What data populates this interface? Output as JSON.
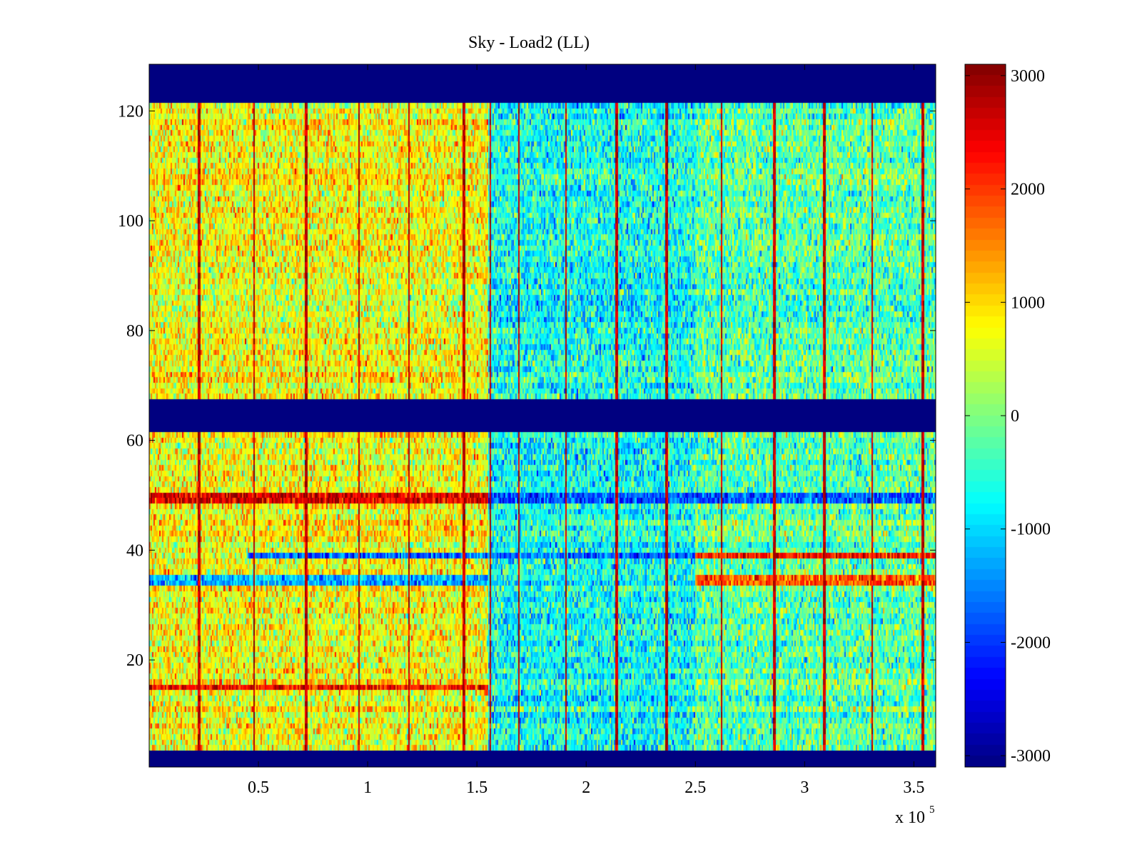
{
  "chart_data": {
    "type": "heatmap",
    "title": "Sky - Load2 (LL)",
    "xlabel": "",
    "ylabel": "",
    "x_multiplier_label": "x 10",
    "x_multiplier_exponent": "5",
    "xlim": [
      0,
      3.6
    ],
    "ylim": [
      0.5,
      128.5
    ],
    "xticks": [
      {
        "value": 0.5,
        "label": "0.5"
      },
      {
        "value": 1,
        "label": "1"
      },
      {
        "value": 1.5,
        "label": "1.5"
      },
      {
        "value": 2,
        "label": "2"
      },
      {
        "value": 2.5,
        "label": "2.5"
      },
      {
        "value": 3,
        "label": "3"
      },
      {
        "value": 3.5,
        "label": "3.5"
      }
    ],
    "yticks": [
      {
        "value": 20,
        "label": "20"
      },
      {
        "value": 40,
        "label": "40"
      },
      {
        "value": 60,
        "label": "60"
      },
      {
        "value": 80,
        "label": "80"
      },
      {
        "value": 100,
        "label": "100"
      },
      {
        "value": 120,
        "label": "120"
      }
    ],
    "colorbar": {
      "colormap": "jet",
      "clim": [
        -3100,
        3100
      ],
      "ticks": [
        {
          "value": 3000,
          "label": "3000"
        },
        {
          "value": 2000,
          "label": "2000"
        },
        {
          "value": 1000,
          "label": "1000"
        },
        {
          "value": 0,
          "label": "0"
        },
        {
          "value": -1000,
          "label": "-1000"
        },
        {
          "value": -2000,
          "label": "-2000"
        },
        {
          "value": -3000,
          "label": "-3000"
        }
      ]
    },
    "masked_channel_ranges": [
      [
        0.5,
        3.5
      ],
      [
        61.5,
        67.5
      ],
      [
        121.5,
        128.5
      ]
    ],
    "masked_value": -3100,
    "time_segments": [
      {
        "x_start": 0.0,
        "x_end": 1.55,
        "base_value": 700
      },
      {
        "x_start": 1.55,
        "x_end": 2.5,
        "base_value": -700
      },
      {
        "x_start": 2.5,
        "x_end": 3.6,
        "base_value": -250
      }
    ],
    "spike_lines_x": [
      0.23,
      0.48,
      0.72,
      0.96,
      1.19,
      1.44,
      1.56,
      1.69,
      1.91,
      2.14,
      2.37,
      2.62,
      2.86,
      3.09,
      3.31,
      3.54
    ],
    "spike_value": 2700,
    "band_features": [
      {
        "channel": 49.5,
        "x_start": 0.0,
        "x_end": 1.55,
        "value": 2500,
        "label": "hot band ~50"
      },
      {
        "channel": 49.5,
        "x_start": 1.55,
        "x_end": 3.6,
        "value": -1800,
        "label": "cold band ~50"
      },
      {
        "channel": 15,
        "x_start": 0.0,
        "x_end": 1.55,
        "value": 2300,
        "label": "hot band ~15"
      },
      {
        "channel": 39,
        "x_start": 0.45,
        "x_end": 2.5,
        "value": -1700,
        "label": "cold band ~39"
      },
      {
        "channel": 39,
        "x_start": 2.5,
        "x_end": 3.6,
        "value": 2300,
        "label": "hot band ~39"
      },
      {
        "channel": 34.5,
        "x_start": 0.0,
        "x_end": 1.55,
        "value": -1200,
        "label": "cool band ~35"
      },
      {
        "channel": 34.5,
        "x_start": 2.5,
        "x_end": 3.6,
        "value": 1800,
        "label": "warm band ~35"
      }
    ]
  }
}
